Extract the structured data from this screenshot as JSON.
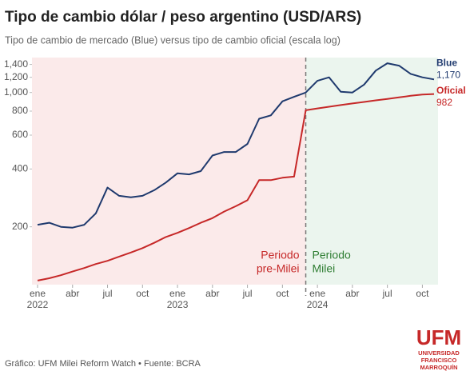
{
  "chart_data": {
    "type": "line",
    "title": "Tipo de cambio dólar / peso argentino (USD/ARS)",
    "subtitle": "Tipo de cambio de mercado (Blue) versus tipo de cambio oficial (escala log)",
    "footer": "Gráfico: UFM Milei Reform Watch • Fuente: BCRA",
    "logo": [
      "UFM",
      "UNIVERSIDAD",
      "FRANCISCO",
      "MARROQUÍN"
    ],
    "log_scale": true,
    "x": [
      "2022-01",
      "2022-02",
      "2022-03",
      "2022-04",
      "2022-05",
      "2022-06",
      "2022-07",
      "2022-08",
      "2022-09",
      "2022-10",
      "2022-11",
      "2022-12",
      "2023-01",
      "2023-02",
      "2023-03",
      "2023-04",
      "2023-05",
      "2023-06",
      "2023-07",
      "2023-08",
      "2023-09",
      "2023-10",
      "2023-11",
      "2023-12",
      "2024-01",
      "2024-02",
      "2024-03",
      "2024-04",
      "2024-05",
      "2024-06",
      "2024-07",
      "2024-08",
      "2024-09",
      "2024-10",
      "2024-11"
    ],
    "series": [
      {
        "name": "Blue",
        "color": "#1f3a6e",
        "values": [
          205,
          210,
          200,
          198,
          205,
          235,
          320,
          290,
          285,
          290,
          310,
          340,
          380,
          375,
          390,
          470,
          490,
          490,
          540,
          730,
          760,
          900,
          950,
          1000,
          1150,
          1200,
          1010,
          1000,
          1100,
          1300,
          1420,
          1380,
          1250,
          1200,
          1170
        ],
        "value_labels": [
          null,
          null,
          null,
          null,
          null,
          null,
          null,
          null,
          null,
          null,
          null,
          null,
          null,
          null,
          null,
          null,
          null,
          null,
          null,
          null,
          null,
          null,
          null,
          null,
          null,
          null,
          null,
          null,
          null,
          null,
          null,
          null,
          null,
          null,
          "1,170"
        ]
      },
      {
        "name": "Oficial",
        "color": "#c62828",
        "values": [
          105,
          108,
          112,
          117,
          122,
          128,
          133,
          140,
          147,
          155,
          165,
          177,
          186,
          197,
          210,
          222,
          240,
          256,
          275,
          350,
          350,
          360,
          365,
          808,
          826,
          843,
          860,
          877,
          893,
          910,
          925,
          943,
          961,
          975,
          982
        ],
        "value_labels": [
          null,
          null,
          null,
          null,
          null,
          null,
          null,
          null,
          null,
          null,
          null,
          null,
          null,
          null,
          null,
          null,
          null,
          null,
          null,
          null,
          null,
          null,
          null,
          null,
          null,
          null,
          null,
          null,
          null,
          null,
          null,
          null,
          null,
          null,
          "982"
        ]
      }
    ],
    "xlim": [
      "2022-01",
      "2024-11"
    ],
    "xticks": [
      {
        "value": "2022-01",
        "label": "ene"
      },
      {
        "value": "2022-04",
        "label": "abr"
      },
      {
        "value": "2022-07",
        "label": "jul"
      },
      {
        "value": "2022-10",
        "label": "oct"
      },
      {
        "value": "2023-01",
        "label": "ene"
      },
      {
        "value": "2023-04",
        "label": "abr"
      },
      {
        "value": "2023-07",
        "label": "jul"
      },
      {
        "value": "2023-10",
        "label": "oct"
      },
      {
        "value": "2024-01",
        "label": "ene"
      },
      {
        "value": "2024-04",
        "label": "abr"
      },
      {
        "value": "2024-07",
        "label": "jul"
      },
      {
        "value": "2024-10",
        "label": "oct"
      }
    ],
    "xtick_years": [
      {
        "value": "2022-01",
        "label": "2022"
      },
      {
        "value": "2023-01",
        "label": "2023"
      },
      {
        "value": "2024-01",
        "label": "2024"
      }
    ],
    "ylim": [
      100,
      1520
    ],
    "yticks": [
      200,
      400,
      600,
      800,
      {
        "value": 1000,
        "label": "1,000"
      },
      {
        "value": 1200,
        "label": "1,200"
      },
      {
        "value": 1400,
        "label": "1,400"
      }
    ],
    "event": {
      "date": "2023-12",
      "before": [
        "Periodo",
        "pre-Milei"
      ],
      "after": [
        "Periodo",
        "Milei"
      ],
      "before_color": "#c62828",
      "after_color": "#2e7d32"
    }
  }
}
